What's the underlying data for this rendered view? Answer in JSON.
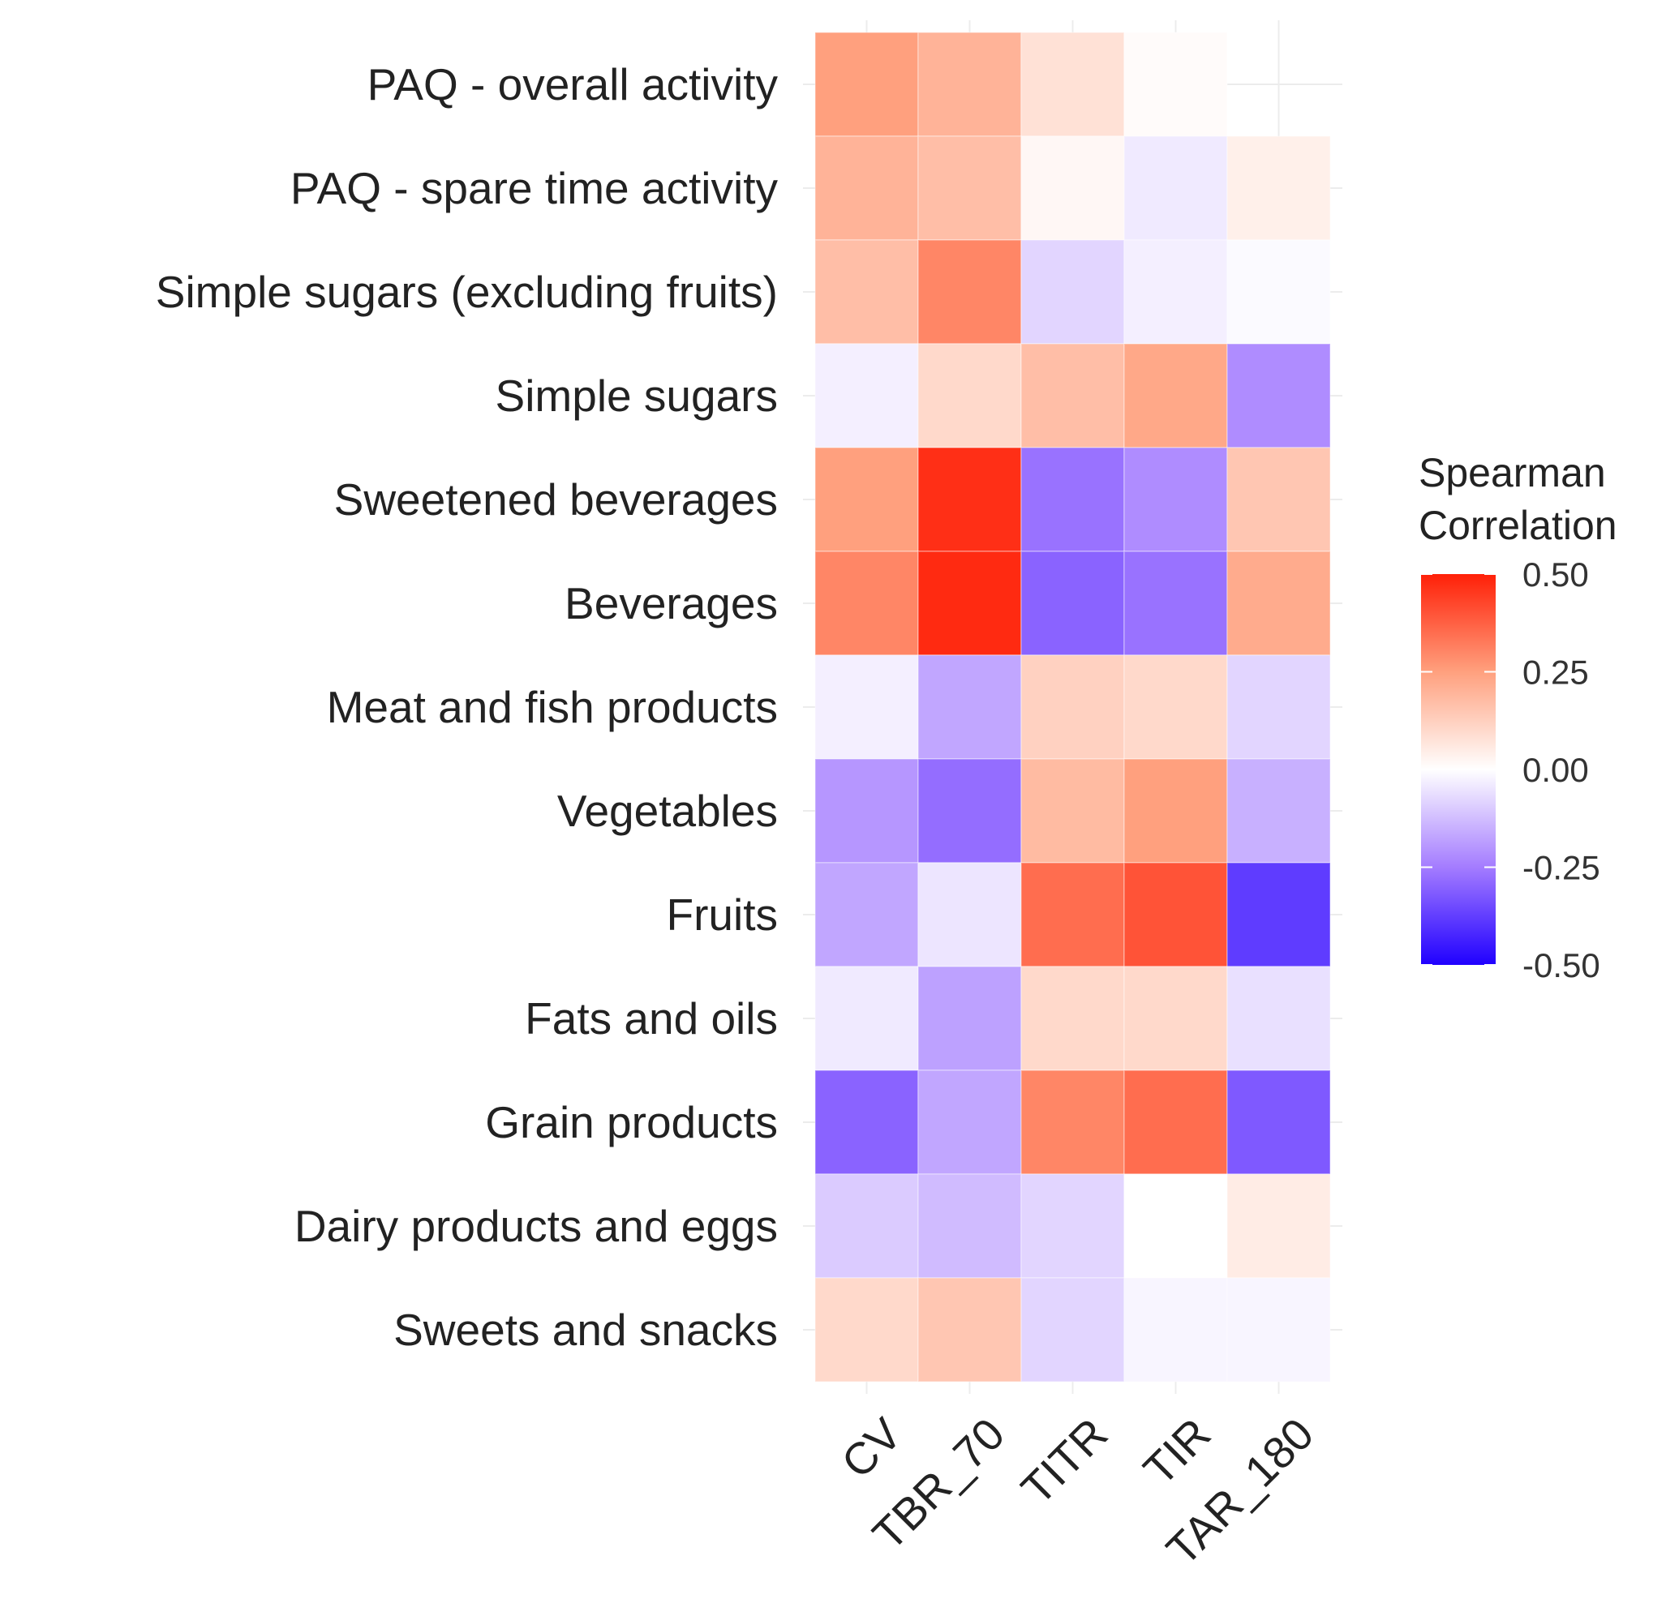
{
  "chart_data": {
    "type": "heatmap",
    "title": "",
    "xlabel": "",
    "ylabel": "",
    "x_categories": [
      "CV",
      "TBR_70",
      "TITR",
      "TIR",
      "TAR_180"
    ],
    "y_categories": [
      "PAQ - overall activity",
      "PAQ - spare time activity",
      "Simple sugars (excluding fruits)",
      "Simple sugars",
      "Sweetened beverages",
      "Beverages",
      "Meat and fish products",
      "Vegetables",
      "Fruits",
      "Fats and oils",
      "Grain products",
      "Dairy products and eggs",
      "Sweets and snacks"
    ],
    "values": [
      [
        0.25,
        0.2,
        0.08,
        0.01,
        null
      ],
      [
        0.2,
        0.17,
        0.02,
        -0.04,
        0.04
      ],
      [
        0.17,
        0.3,
        -0.08,
        -0.03,
        -0.01
      ],
      [
        -0.03,
        0.1,
        0.17,
        0.23,
        -0.22
      ],
      [
        0.25,
        0.47,
        -0.27,
        -0.22,
        0.15
      ],
      [
        0.3,
        0.48,
        -0.3,
        -0.27,
        0.22
      ],
      [
        -0.03,
        -0.17,
        0.12,
        0.1,
        -0.08
      ],
      [
        -0.2,
        -0.28,
        0.18,
        0.25,
        -0.15
      ],
      [
        -0.17,
        -0.05,
        0.35,
        0.4,
        -0.38
      ],
      [
        -0.04,
        -0.18,
        0.1,
        0.1,
        -0.06
      ],
      [
        -0.3,
        -0.17,
        0.3,
        0.35,
        -0.32
      ],
      [
        -0.1,
        -0.13,
        -0.08,
        0.0,
        0.05
      ],
      [
        0.1,
        0.15,
        -0.08,
        -0.02,
        -0.02
      ]
    ],
    "legend": {
      "title_lines": [
        "Spearman",
        "Correlation"
      ],
      "ticks": [
        0.5,
        0.25,
        0.0,
        -0.25,
        -0.5
      ],
      "tick_labels": [
        "0.50",
        "0.25",
        "0.00",
        "-0.25",
        "-0.50"
      ],
      "placement": "right"
    },
    "color_scale": {
      "range": [
        -0.5,
        0.5
      ],
      "low": "#2000ff",
      "mid_low": "#a47cff",
      "mid": "#ffffff",
      "mid_high": "#ffa07e",
      "high": "#ff2008"
    }
  }
}
